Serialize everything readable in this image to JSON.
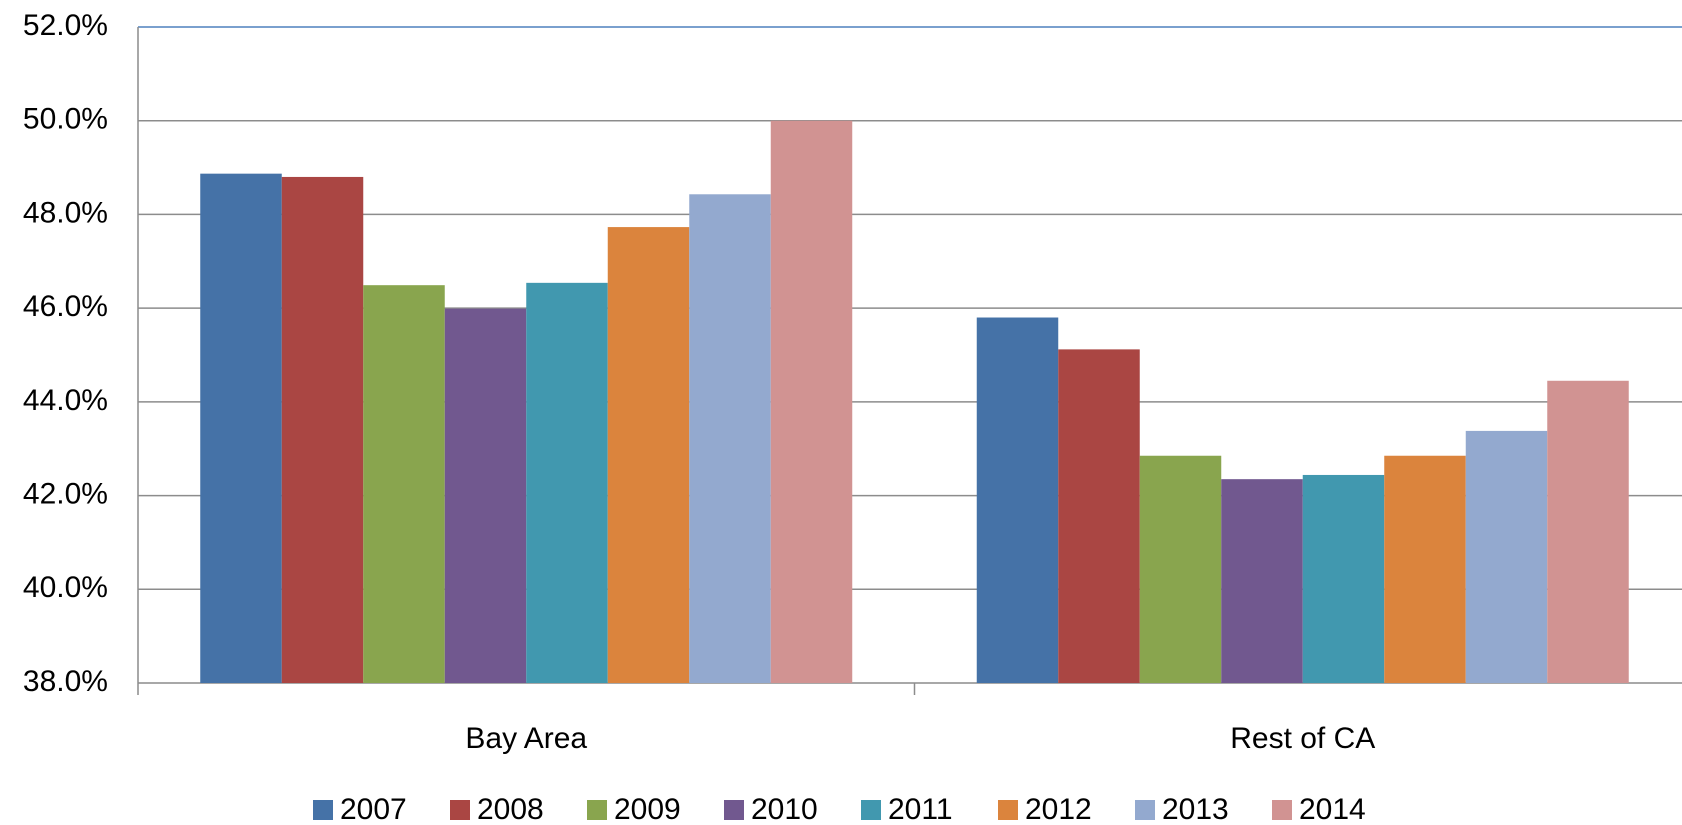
{
  "chart_data": {
    "type": "bar",
    "categories": [
      "Bay Area",
      "Rest of CA"
    ],
    "series": [
      {
        "name": "2007",
        "color": "#4572a7",
        "values": [
          48.87,
          45.8
        ]
      },
      {
        "name": "2008",
        "color": "#aa4643",
        "values": [
          48.8,
          45.12
        ]
      },
      {
        "name": "2009",
        "color": "#89a54e",
        "values": [
          46.49,
          42.85
        ]
      },
      {
        "name": "2010",
        "color": "#71588f",
        "values": [
          45.99,
          42.35
        ]
      },
      {
        "name": "2011",
        "color": "#4198af",
        "values": [
          46.54,
          42.44
        ]
      },
      {
        "name": "2012",
        "color": "#db843d",
        "values": [
          47.73,
          42.85
        ]
      },
      {
        "name": "2013",
        "color": "#93a9cf",
        "values": [
          48.43,
          43.38
        ]
      },
      {
        "name": "2014",
        "color": "#d19392",
        "values": [
          50.0,
          44.45
        ]
      }
    ],
    "ylim": [
      38,
      52
    ],
    "yticks": [
      {
        "value": 38,
        "label": "38.0%"
      },
      {
        "value": 40,
        "label": "40.0%"
      },
      {
        "value": 42,
        "label": "42.0%"
      },
      {
        "value": 44,
        "label": "44.0%"
      },
      {
        "value": 46,
        "label": "46.0%"
      },
      {
        "value": 48,
        "label": "48.0%"
      },
      {
        "value": 50,
        "label": "50.0%"
      },
      {
        "value": 52,
        "label": "52.0%"
      }
    ],
    "grid": true,
    "legend": "bottom"
  }
}
